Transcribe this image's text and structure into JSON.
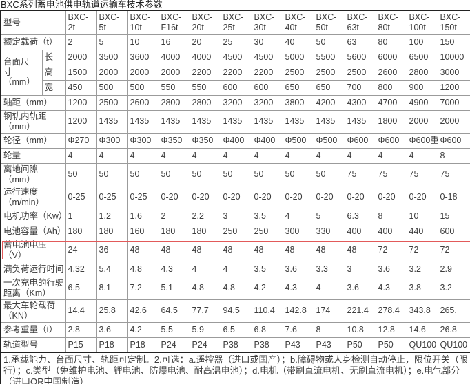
{
  "title": "BXC系列蓄电池供电轨道运输车技术参数",
  "highlight": {
    "color": "#e25a5a",
    "row_key": "battery_voltage"
  },
  "table": {
    "model_label": "型号",
    "models": [
      "BXC-2t",
      "BXC-5t",
      "BXC-10t",
      "BXC-F16t",
      "BXC-20t",
      "BXC-25t",
      "BXC-30t",
      "BXC-40t",
      "BXC-50t",
      "BXC-63t",
      "BXC-80t",
      "BXC-100t",
      "BXC-150t"
    ],
    "rows": [
      {
        "key": "rated_load",
        "label": "额定载荷（t）",
        "values": [
          "2",
          "5",
          "10",
          "16",
          "20",
          "25",
          "30",
          "40",
          "50",
          "63",
          "80",
          "100",
          "150"
        ]
      },
      {
        "key": "platform_size",
        "label": "台面尺\n寸\n（mm）",
        "subrows": [
          {
            "key": "length",
            "label": "长",
            "values": [
              "2000",
              "3500",
              "3600",
              "4000",
              "4000",
              "4500",
              "4500",
              "5000",
              "5500",
              "5600",
              "6000",
              "6500",
              "10000"
            ]
          },
          {
            "key": "height",
            "label": "高",
            "values": [
              "1500",
              "2000",
              "2000",
              "2000",
              "2200",
              "2200",
              "2200",
              "2500",
              "2500",
              "2500",
              "2600",
              "2800",
              "3000"
            ]
          },
          {
            "key": "width",
            "label": "宽",
            "values": [
              "450",
              "500",
              "500",
              "550",
              "550",
              "600",
              "600",
              "650",
              "650",
              "700",
              "800",
              "900",
              "1200"
            ]
          }
        ]
      },
      {
        "key": "wheelbase",
        "label": "轴距（mm）",
        "values": [
          "1200",
          "2500",
          "2600",
          "2800",
          "2800",
          "3200",
          "3200",
          "3800",
          "4200",
          "4300",
          "4700",
          "4900",
          "7000"
        ]
      },
      {
        "key": "rail_gauge",
        "label": "钢轨内轨距\n（mm）",
        "tall": true,
        "values": [
          "1200",
          "1435",
          "1435",
          "1435",
          "1435",
          "1435",
          "1435",
          "1435",
          "1435",
          "1435",
          "1800",
          "2000",
          "2000"
        ]
      },
      {
        "key": "wheel_diameter",
        "label": "轮径（mm）",
        "values": [
          "Φ270",
          "Φ300",
          "Φ300",
          "Φ350",
          "Φ350",
          "Φ400",
          "Φ400",
          "Φ500",
          "Φ500",
          "Φ600",
          "Φ600",
          "Φ600重",
          "Φ600"
        ]
      },
      {
        "key": "wheel_count",
        "label": "轮量",
        "values": [
          "4",
          "4",
          "4",
          "4",
          "4",
          "4",
          "4",
          "4",
          "4",
          "4",
          "4",
          "4",
          "8"
        ]
      },
      {
        "key": "ground_clearance",
        "label": "离地间隙\n（mm）",
        "tall": true,
        "values": [
          "50",
          "50",
          "50",
          "50",
          "50",
          "50",
          "50",
          "50",
          "50",
          "75",
          "75",
          "75",
          "75"
        ]
      },
      {
        "key": "running_speed",
        "label": "运行速度\n（m/min）",
        "tall": true,
        "values": [
          "0-25",
          "0-25",
          "0-25",
          "0-20",
          "0-20",
          "0-20",
          "0-20",
          "0-20",
          "0-20",
          "0-20",
          "0-20",
          "0-20",
          "0-18"
        ]
      },
      {
        "key": "motor_power",
        "label": "电机功率（Kw）",
        "values": [
          "1",
          "1.2",
          "1.6",
          "2",
          "2.2",
          "3",
          "3.5",
          "4",
          "5",
          "6.3",
          "8",
          "10",
          "15"
        ]
      },
      {
        "key": "battery_capacity",
        "label": "电池容量（Ah）",
        "values": [
          "180",
          "180",
          "160",
          "180",
          "180",
          "250",
          "250",
          "300",
          "330",
          "400",
          "400",
          "440",
          "600"
        ]
      },
      {
        "key": "battery_voltage",
        "label": "蓄电池电压\n（V）",
        "tall": true,
        "highlighted": true,
        "values": [
          "24",
          "36",
          "48",
          "48",
          "48",
          "48",
          "48",
          "48",
          "48",
          "48",
          "72",
          "72",
          "72"
        ]
      },
      {
        "key": "full_load_run_time",
        "label": "满负荷运行时间",
        "values": [
          "4.32",
          "5.4",
          "4.8",
          "4.3",
          "4",
          "4",
          "3.5",
          "3.6",
          "3.3",
          "3",
          "3.6",
          "3.2",
          "2.9"
        ]
      },
      {
        "key": "range_per_charge",
        "label": "一次充电的行驶\n距离（Km）",
        "tall": true,
        "values": [
          "6.5",
          "8.1",
          "7.2",
          "5.1",
          "4.8",
          "4.8",
          "4.2",
          "4.3",
          "4",
          "3.6",
          "4.3",
          "3.8",
          "3.2"
        ]
      },
      {
        "key": "max_wheel_load",
        "label": "最大车轮载荷\n（KN）",
        "tall": true,
        "values": [
          "14.4",
          "25.8",
          "42.6",
          "64.5",
          "77.7",
          "94.5",
          "110.4",
          "142.8",
          "174",
          "221.4",
          "278.4",
          "343.8",
          "265."
        ]
      },
      {
        "key": "reference_weight",
        "label": "参考重量（t）",
        "values": [
          "2.8",
          "3.6",
          "4.2",
          "5.5",
          "5.9",
          "6.5",
          "6.8",
          "7.6",
          "8",
          "10.8",
          "12.8",
          "14.6",
          "26.8"
        ]
      },
      {
        "key": "rail_model",
        "label": "轨道型号",
        "values": [
          "P15",
          "P18",
          "P18",
          "P24",
          "P24",
          "P38",
          "P38",
          "P43",
          "P43",
          "P50",
          "P50",
          "QU100",
          "QU100"
        ]
      }
    ],
    "notes": "1.承载能力、台面尺寸、轨距可定制。2.可选：a.遥控器（进口或国产）；b.障碍物或人身检测自动停止，限位开关（限行）；c.类型（免维护电池、锂电池、防爆电池、耐高温电池）；d.电机（带刷直流电机、无刷直流电机）；e.电气部分（进口OR中国制造）"
  }
}
